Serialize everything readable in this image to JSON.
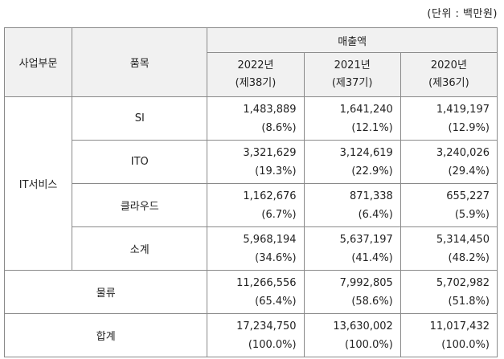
{
  "unit_note": "(단위 : 백만원)",
  "header": {
    "segment": "사업부문",
    "product": "품목",
    "sales": "매출액",
    "years": [
      {
        "year": "2022년",
        "period": "(제38기)"
      },
      {
        "year": "2021년",
        "period": "(제37기)"
      },
      {
        "year": "2020년",
        "period": "(제36기)"
      }
    ]
  },
  "it_segment": "IT서비스",
  "it_rows": [
    {
      "product": "SI",
      "values": [
        {
          "amount": "1,483,889",
          "share": "(8.6%)"
        },
        {
          "amount": "1,641,240",
          "share": "(12.1%)"
        },
        {
          "amount": "1,419,197",
          "share": "(12.9%)"
        }
      ]
    },
    {
      "product": "ITO",
      "values": [
        {
          "amount": "3,321,629",
          "share": "(19.3%)"
        },
        {
          "amount": "3,124,619",
          "share": "(22.9%)"
        },
        {
          "amount": "3,240,026",
          "share": "(29.4%)"
        }
      ]
    },
    {
      "product": "클라우드",
      "values": [
        {
          "amount": "1,162,676",
          "share": "(6.7%)"
        },
        {
          "amount": "871,338",
          "share": "(6.4%)"
        },
        {
          "amount": "655,227",
          "share": "(5.9%)"
        }
      ]
    },
    {
      "product": "소계",
      "values": [
        {
          "amount": "5,968,194",
          "share": "(34.6%)"
        },
        {
          "amount": "5,637,197",
          "share": "(41.4%)"
        },
        {
          "amount": "5,314,450",
          "share": "(48.2%)"
        }
      ]
    }
  ],
  "logistics": {
    "label": "물류",
    "values": [
      {
        "amount": "11,266,556",
        "share": "(65.4%)"
      },
      {
        "amount": "7,992,805",
        "share": "(58.6%)"
      },
      {
        "amount": "5,702,982",
        "share": "(51.8%)"
      }
    ]
  },
  "total": {
    "label": "합계",
    "values": [
      {
        "amount": "17,234,750",
        "share": "(100.0%)"
      },
      {
        "amount": "13,630,002",
        "share": "(100.0%)"
      },
      {
        "amount": "11,017,432",
        "share": "(100.0%)"
      }
    ]
  }
}
